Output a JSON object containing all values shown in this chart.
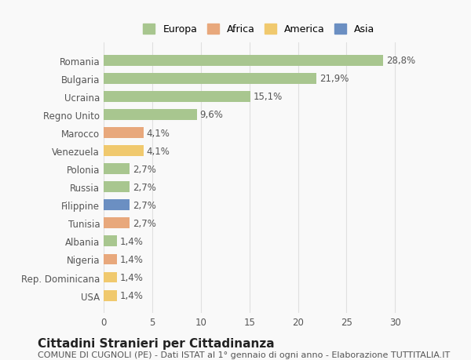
{
  "categories": [
    "Romania",
    "Bulgaria",
    "Ucraina",
    "Regno Unito",
    "Marocco",
    "Venezuela",
    "Polonia",
    "Russia",
    "Filippine",
    "Tunisia",
    "Albania",
    "Nigeria",
    "Rep. Dominicana",
    "USA"
  ],
  "values": [
    28.8,
    21.9,
    15.1,
    9.6,
    4.1,
    4.1,
    2.7,
    2.7,
    2.7,
    2.7,
    1.4,
    1.4,
    1.4,
    1.4
  ],
  "labels": [
    "28,8%",
    "21,9%",
    "15,1%",
    "9,6%",
    "4,1%",
    "4,1%",
    "2,7%",
    "2,7%",
    "2,7%",
    "2,7%",
    "1,4%",
    "1,4%",
    "1,4%",
    "1,4%"
  ],
  "colors": [
    "#a8c68f",
    "#a8c68f",
    "#a8c68f",
    "#a8c68f",
    "#e8a87c",
    "#f0c96e",
    "#a8c68f",
    "#a8c68f",
    "#6b8fc2",
    "#e8a87c",
    "#a8c68f",
    "#e8a87c",
    "#f0c96e",
    "#f0c96e"
  ],
  "continent": [
    "Europa",
    "Europa",
    "Europa",
    "Europa",
    "Africa",
    "America",
    "Europa",
    "Europa",
    "Asia",
    "Africa",
    "Europa",
    "Africa",
    "America",
    "America"
  ],
  "legend_labels": [
    "Europa",
    "Africa",
    "America",
    "Asia"
  ],
  "legend_colors": [
    "#a8c68f",
    "#e8a87c",
    "#f0c96e",
    "#6b8fc2"
  ],
  "title": "Cittadini Stranieri per Cittadinanza",
  "subtitle": "COMUNE DI CUGNOLI (PE) - Dati ISTAT al 1° gennaio di ogni anno - Elaborazione TUTTITALIA.IT",
  "xlabel": "",
  "xlim": [
    0,
    32
  ],
  "background_color": "#f9f9f9",
  "grid_color": "#e0e0e0",
  "title_fontsize": 11,
  "subtitle_fontsize": 8,
  "label_fontsize": 8.5,
  "tick_fontsize": 8.5
}
